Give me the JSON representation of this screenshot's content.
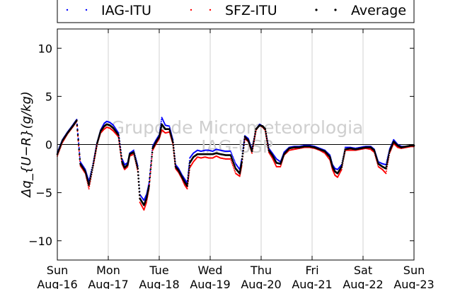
{
  "chart_data": {
    "type": "scatter",
    "ylabel": "Δq_{U−R}(g/kg)",
    "ylim": [
      -12,
      12
    ],
    "y_ticks": [
      {
        "value": 10,
        "label": "10"
      },
      {
        "value": 5,
        "label": "5"
      },
      {
        "value": 0,
        "label": "0"
      },
      {
        "value": -5,
        "label": "−5"
      },
      {
        "value": -10,
        "label": "−10"
      }
    ],
    "xlim": [
      0,
      7
    ],
    "x_unit": "days since start",
    "x_ticks": [
      {
        "value": 0,
        "day": "Sun",
        "date": "Aug-16"
      },
      {
        "value": 1,
        "day": "Mon",
        "date": "Aug-17"
      },
      {
        "value": 2,
        "day": "Tue",
        "date": "Aug-18"
      },
      {
        "value": 3,
        "day": "Wed",
        "date": "Aug-19"
      },
      {
        "value": 4,
        "day": "Thu",
        "date": "Aug-20"
      },
      {
        "value": 5,
        "day": "Fri",
        "date": "Aug-21"
      },
      {
        "value": 6,
        "day": "Sat",
        "date": "Aug-22"
      },
      {
        "value": 7,
        "day": "Sun",
        "date": "Aug-23"
      }
    ],
    "vertical_grid": true,
    "zero_line": true,
    "legend_position": "top",
    "watermark": [
      "Grupo de Micrometeorologia",
      "IAG-USP"
    ],
    "series": [
      {
        "name": "IAG-ITU",
        "color": "#0000ff",
        "x": [
          0.0,
          0.1,
          0.2,
          0.3,
          0.38,
          0.45,
          0.55,
          0.62,
          0.7,
          0.78,
          0.85,
          0.92,
          0.97,
          1.03,
          1.1,
          1.2,
          1.27,
          1.32,
          1.38,
          1.42,
          1.5,
          1.58,
          1.62,
          1.7,
          1.75,
          1.8,
          1.87,
          1.93,
          2.0,
          2.05,
          2.12,
          2.2,
          2.27,
          2.32,
          2.38,
          2.45,
          2.5,
          2.55,
          2.6,
          2.67,
          2.75,
          2.82,
          2.9,
          2.97,
          3.05,
          3.12,
          3.2,
          3.3,
          3.4,
          3.5,
          3.58,
          3.62,
          3.68,
          3.75,
          3.82,
          3.9,
          3.97,
          4.03,
          4.08,
          4.15,
          4.22,
          4.3,
          4.38,
          4.45,
          4.55,
          4.65,
          4.75,
          4.85,
          4.95,
          5.05,
          5.15,
          5.25,
          5.35,
          5.4,
          5.45,
          5.5,
          5.58,
          5.65,
          5.75,
          5.85,
          5.95,
          6.05,
          6.15,
          6.22,
          6.3,
          6.38,
          6.45,
          6.52,
          6.6,
          6.68,
          6.75,
          6.85,
          6.95,
          7.0
        ],
        "y": [
          -0.8,
          0.5,
          1.3,
          2.0,
          2.6,
          -1.8,
          -2.6,
          -3.8,
          -2.0,
          0.2,
          1.5,
          2.2,
          2.4,
          2.3,
          2.0,
          1.2,
          -1.5,
          -2.1,
          -1.9,
          -0.9,
          -0.6,
          -2.2,
          -5.2,
          -5.8,
          -5.2,
          -4.0,
          -0.2,
          0.4,
          1.0,
          2.8,
          2.0,
          1.9,
          0.5,
          -2.1,
          -2.5,
          -3.2,
          -3.6,
          -4.0,
          -1.4,
          -0.9,
          -0.6,
          -0.7,
          -0.6,
          -0.6,
          -0.7,
          -0.5,
          -0.6,
          -0.7,
          -0.7,
          -2.0,
          -2.6,
          -1.5,
          0.9,
          0.6,
          -0.5,
          1.6,
          2.1,
          1.9,
          1.6,
          -0.4,
          -0.9,
          -1.5,
          -1.8,
          -0.8,
          -0.3,
          -0.2,
          -0.2,
          -0.1,
          -0.1,
          -0.2,
          -0.4,
          -0.6,
          -1.1,
          -2.1,
          -2.5,
          -2.6,
          -2.1,
          -0.3,
          -0.3,
          -0.4,
          -0.3,
          -0.2,
          -0.2,
          -0.5,
          -1.8,
          -2.0,
          -2.1,
          -0.5,
          0.5,
          0.0,
          -0.2,
          -0.2,
          -0.1,
          -0.1
        ]
      },
      {
        "name": "SFZ-ITU",
        "color": "#ff0000",
        "x": [
          0.0,
          0.1,
          0.2,
          0.3,
          0.38,
          0.45,
          0.55,
          0.62,
          0.7,
          0.78,
          0.85,
          0.92,
          0.97,
          1.03,
          1.1,
          1.2,
          1.27,
          1.32,
          1.38,
          1.42,
          1.5,
          1.58,
          1.62,
          1.7,
          1.75,
          1.8,
          1.87,
          1.93,
          2.0,
          2.05,
          2.12,
          2.2,
          2.27,
          2.32,
          2.38,
          2.45,
          2.5,
          2.55,
          2.6,
          2.67,
          2.75,
          2.82,
          2.9,
          2.97,
          3.05,
          3.12,
          3.2,
          3.3,
          3.4,
          3.5,
          3.58,
          3.62,
          3.68,
          3.75,
          3.82,
          3.9,
          3.97,
          4.03,
          4.08,
          4.15,
          4.22,
          4.3,
          4.38,
          4.45,
          4.55,
          4.65,
          4.75,
          4.85,
          4.95,
          5.05,
          5.15,
          5.25,
          5.35,
          5.4,
          5.45,
          5.5,
          5.58,
          5.65,
          5.75,
          5.85,
          5.95,
          6.05,
          6.15,
          6.22,
          6.3,
          6.38,
          6.45,
          6.52,
          6.6,
          6.68,
          6.75,
          6.85,
          6.95,
          7.0
        ],
        "y": [
          -1.2,
          0.2,
          1.1,
          1.8,
          2.4,
          -2.2,
          -3.0,
          -4.6,
          -2.4,
          0.0,
          1.2,
          1.6,
          1.8,
          1.7,
          1.4,
          0.8,
          -2.0,
          -2.6,
          -2.3,
          -1.2,
          -1.0,
          -2.8,
          -6.0,
          -6.8,
          -6.0,
          -4.6,
          -0.6,
          0.0,
          0.6,
          1.5,
          1.2,
          1.3,
          0.0,
          -2.5,
          -2.9,
          -3.6,
          -4.2,
          -4.6,
          -2.4,
          -1.8,
          -1.3,
          -1.4,
          -1.3,
          -1.4,
          -1.4,
          -1.2,
          -1.4,
          -1.5,
          -1.5,
          -3.0,
          -3.3,
          -2.2,
          0.6,
          0.3,
          -0.9,
          1.5,
          2.0,
          1.8,
          1.5,
          -0.8,
          -1.4,
          -2.3,
          -2.3,
          -1.1,
          -0.6,
          -0.5,
          -0.4,
          -0.3,
          -0.3,
          -0.4,
          -0.6,
          -0.9,
          -1.6,
          -2.6,
          -3.2,
          -3.4,
          -2.6,
          -0.6,
          -0.6,
          -0.6,
          -0.5,
          -0.4,
          -0.5,
          -0.8,
          -2.3,
          -2.6,
          -3.0,
          -0.9,
          0.1,
          -0.3,
          -0.4,
          -0.3,
          -0.2,
          -0.2
        ]
      },
      {
        "name": "Average",
        "color": "#000000",
        "x": [
          0.0,
          0.1,
          0.2,
          0.3,
          0.38,
          0.45,
          0.55,
          0.62,
          0.7,
          0.78,
          0.85,
          0.92,
          0.97,
          1.03,
          1.1,
          1.2,
          1.27,
          1.32,
          1.38,
          1.42,
          1.5,
          1.58,
          1.62,
          1.7,
          1.75,
          1.8,
          1.87,
          1.93,
          2.0,
          2.05,
          2.12,
          2.2,
          2.27,
          2.32,
          2.38,
          2.45,
          2.5,
          2.55,
          2.6,
          2.67,
          2.75,
          2.82,
          2.9,
          2.97,
          3.05,
          3.12,
          3.2,
          3.3,
          3.4,
          3.5,
          3.58,
          3.62,
          3.68,
          3.75,
          3.82,
          3.9,
          3.97,
          4.03,
          4.08,
          4.15,
          4.22,
          4.3,
          4.38,
          4.45,
          4.55,
          4.65,
          4.75,
          4.85,
          4.95,
          5.05,
          5.15,
          5.25,
          5.35,
          5.4,
          5.45,
          5.5,
          5.58,
          5.65,
          5.75,
          5.85,
          5.95,
          6.05,
          6.15,
          6.22,
          6.3,
          6.38,
          6.45,
          6.52,
          6.6,
          6.68,
          6.75,
          6.85,
          6.95,
          7.0
        ],
        "y": [
          -1.0,
          0.4,
          1.2,
          1.9,
          2.5,
          -2.0,
          -2.8,
          -4.2,
          -2.2,
          0.1,
          1.4,
          1.9,
          2.1,
          2.0,
          1.7,
          1.0,
          -1.8,
          -2.4,
          -2.1,
          -1.0,
          -0.8,
          -2.5,
          -5.6,
          -6.3,
          -5.6,
          -4.3,
          -0.4,
          0.2,
          0.8,
          2.1,
          1.6,
          1.6,
          0.2,
          -2.3,
          -2.7,
          -3.4,
          -3.9,
          -4.3,
          -1.9,
          -1.3,
          -1.0,
          -1.0,
          -1.0,
          -1.0,
          -1.0,
          -0.9,
          -1.0,
          -1.1,
          -1.1,
          -2.5,
          -3.0,
          -1.8,
          0.8,
          0.4,
          -0.7,
          1.6,
          2.0,
          1.9,
          1.6,
          -0.6,
          -1.1,
          -1.9,
          -2.0,
          -1.0,
          -0.4,
          -0.3,
          -0.3,
          -0.2,
          -0.2,
          -0.3,
          -0.5,
          -0.7,
          -1.3,
          -2.3,
          -2.8,
          -3.0,
          -2.3,
          -0.5,
          -0.4,
          -0.5,
          -0.4,
          -0.3,
          -0.3,
          -0.6,
          -2.0,
          -2.3,
          -2.5,
          -0.7,
          0.3,
          -0.1,
          -0.3,
          -0.2,
          -0.1,
          -0.1
        ]
      }
    ]
  }
}
